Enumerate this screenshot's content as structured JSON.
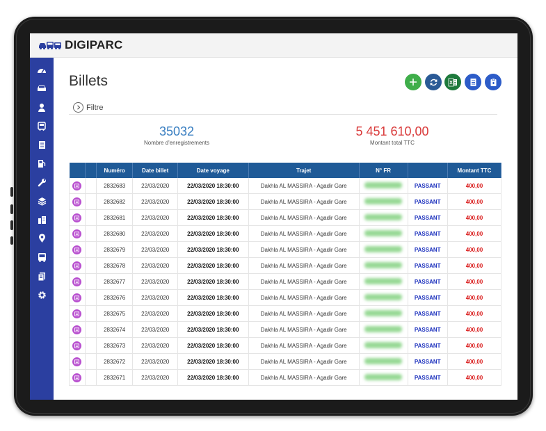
{
  "app": {
    "name": "DIGIPARC"
  },
  "page": {
    "title": "Billets",
    "filter_label": "Filtre"
  },
  "actions": [
    {
      "name": "add-button",
      "icon": "plus-icon",
      "color": "#3fae4a"
    },
    {
      "name": "refresh-button",
      "icon": "refresh-icon",
      "color": "#2a5a96"
    },
    {
      "name": "excel-button",
      "icon": "excel-icon",
      "color": "#1e7a3c"
    },
    {
      "name": "document-button",
      "icon": "document-icon",
      "color": "#2d5cc8"
    },
    {
      "name": "clipboard-button",
      "icon": "clipboard-icon",
      "color": "#2d5cc8"
    }
  ],
  "stats": {
    "records": {
      "value": "35032",
      "label": "Nombre d'enregistrements",
      "color": "#3a7fc1"
    },
    "total": {
      "value": "5 451 610,00",
      "label": "Montant total TTC",
      "color": "#d93a3a"
    }
  },
  "sidebar": {
    "items": [
      "dashboard-icon",
      "car-icon",
      "user-icon",
      "bus-icon",
      "document-icon",
      "fuel-icon",
      "wrench-icon",
      "layers-icon",
      "building-icon",
      "location-icon",
      "bus-front-icon",
      "files-icon",
      "gear-icon"
    ]
  },
  "table": {
    "columns": [
      "",
      "",
      "Numéro",
      "Date billet",
      "Date voyage",
      "Trajet",
      "N° FR",
      "",
      "Montant TTC"
    ],
    "rows": [
      {
        "numero": "2832683",
        "date_billet": "22/03/2020",
        "date_voyage": "22/03/2020 18:30:00",
        "trajet": "Dakhla AL MASSIRA - Agadir Gare",
        "type": "PASSANT",
        "montant": "400,00"
      },
      {
        "numero": "2832682",
        "date_billet": "22/03/2020",
        "date_voyage": "22/03/2020 18:30:00",
        "trajet": "Dakhla AL MASSIRA - Agadir Gare",
        "type": "PASSANT",
        "montant": "400,00"
      },
      {
        "numero": "2832681",
        "date_billet": "22/03/2020",
        "date_voyage": "22/03/2020 18:30:00",
        "trajet": "Dakhla AL MASSIRA - Agadir Gare",
        "type": "PASSANT",
        "montant": "400,00"
      },
      {
        "numero": "2832680",
        "date_billet": "22/03/2020",
        "date_voyage": "22/03/2020 18:30:00",
        "trajet": "Dakhla AL MASSIRA - Agadir Gare",
        "type": "PASSANT",
        "montant": "400,00"
      },
      {
        "numero": "2832679",
        "date_billet": "22/03/2020",
        "date_voyage": "22/03/2020 18:30:00",
        "trajet": "Dakhla AL MASSIRA - Agadir Gare",
        "type": "PASSANT",
        "montant": "400,00"
      },
      {
        "numero": "2832678",
        "date_billet": "22/03/2020",
        "date_voyage": "22/03/2020 18:30:00",
        "trajet": "Dakhla AL MASSIRA - Agadir Gare",
        "type": "PASSANT",
        "montant": "400,00"
      },
      {
        "numero": "2832677",
        "date_billet": "22/03/2020",
        "date_voyage": "22/03/2020 18:30:00",
        "trajet": "Dakhla AL MASSIRA - Agadir Gare",
        "type": "PASSANT",
        "montant": "400,00"
      },
      {
        "numero": "2832676",
        "date_billet": "22/03/2020",
        "date_voyage": "22/03/2020 18:30:00",
        "trajet": "Dakhla AL MASSIRA - Agadir Gare",
        "type": "PASSANT",
        "montant": "400,00"
      },
      {
        "numero": "2832675",
        "date_billet": "22/03/2020",
        "date_voyage": "22/03/2020 18:30:00",
        "trajet": "Dakhla AL MASSIRA - Agadir Gare",
        "type": "PASSANT",
        "montant": "400,00"
      },
      {
        "numero": "2832674",
        "date_billet": "22/03/2020",
        "date_voyage": "22/03/2020 18:30:00",
        "trajet": "Dakhla AL MASSIRA - Agadir Gare",
        "type": "PASSANT",
        "montant": "400,00"
      },
      {
        "numero": "2832673",
        "date_billet": "22/03/2020",
        "date_voyage": "22/03/2020 18:30:00",
        "trajet": "Dakhla AL MASSIRA - Agadir Gare",
        "type": "PASSANT",
        "montant": "400,00"
      },
      {
        "numero": "2832672",
        "date_billet": "22/03/2020",
        "date_voyage": "22/03/2020 18:30:00",
        "trajet": "Dakhla AL MASSIRA - Agadir Gare",
        "type": "PASSANT",
        "montant": "400,00"
      },
      {
        "numero": "2832671",
        "date_billet": "22/03/2020",
        "date_voyage": "22/03/2020 18:30:00",
        "trajet": "Dakhla AL MASSIRA - Agadir Gare",
        "type": "PASSANT",
        "montant": "400,00"
      }
    ]
  }
}
